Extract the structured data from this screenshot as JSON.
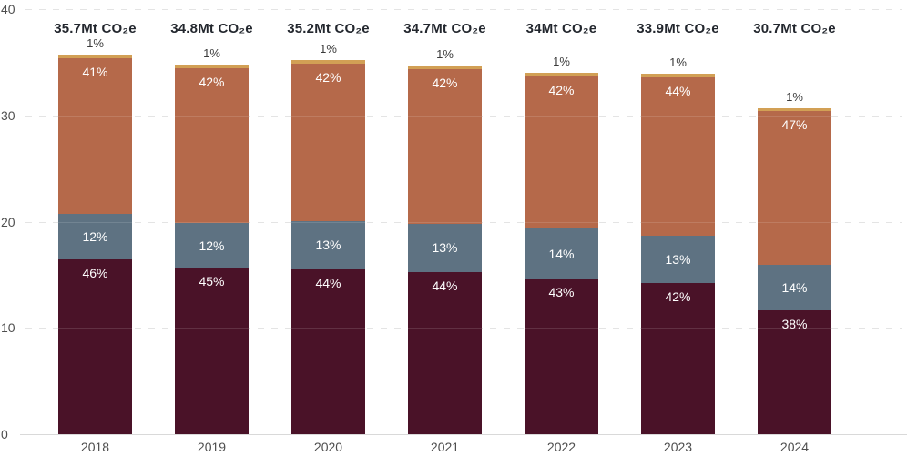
{
  "chart_data": {
    "type": "bar",
    "variant": "stacked",
    "title": "",
    "unit": "Mt CO₂e",
    "categories": [
      "2018",
      "2019",
      "2020",
      "2021",
      "2022",
      "2023",
      "2024"
    ],
    "totals": [
      35.7,
      34.8,
      35.2,
      34.7,
      34,
      33.9,
      30.7
    ],
    "total_labels": [
      "35.7Mt CO₂e",
      "34.8Mt CO₂e",
      "35.2Mt CO₂e",
      "34.7Mt CO₂e",
      "34Mt CO₂e",
      "33.9Mt CO₂e",
      "30.7Mt CO₂e"
    ],
    "value_suffix": "%",
    "series": [
      {
        "name": "bottom-segment",
        "color": "#4a1228",
        "label_style": "inside-top",
        "values": [
          46,
          45,
          44,
          44,
          43,
          42,
          38
        ]
      },
      {
        "name": "lower-middle-segment",
        "color": "#5e7282",
        "label_style": "inside-center",
        "values": [
          12,
          12,
          13,
          13,
          14,
          13,
          14
        ]
      },
      {
        "name": "upper-middle-segment",
        "color": "#b5694a",
        "label_style": "inside-top",
        "values": [
          41,
          42,
          42,
          42,
          42,
          44,
          47
        ]
      },
      {
        "name": "top-segment",
        "color": "#d2a055",
        "label_style": "above-bar",
        "values": [
          1,
          1,
          1,
          1,
          1,
          1,
          1
        ]
      }
    ],
    "y_axis": {
      "ticks": [
        0,
        10,
        20,
        30,
        40
      ],
      "range": [
        0,
        40
      ],
      "gridlines": "dashed-horizontal"
    },
    "legend": "none"
  }
}
